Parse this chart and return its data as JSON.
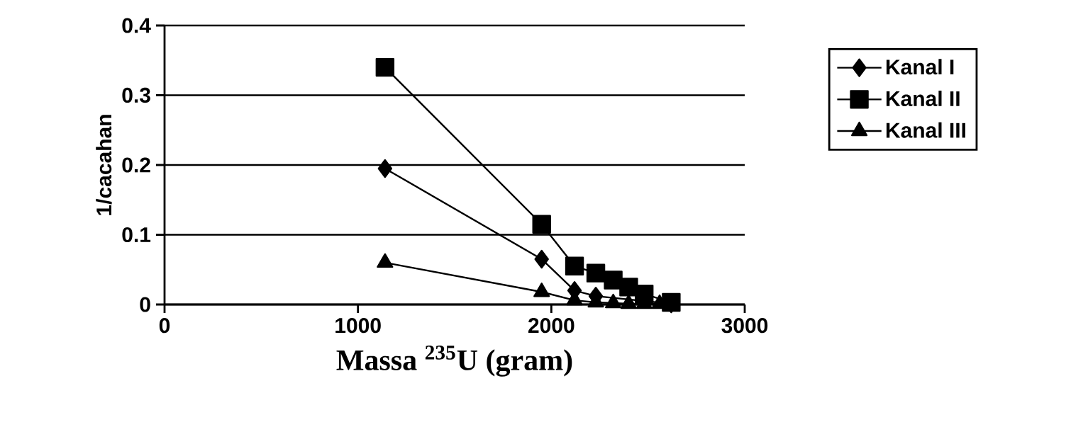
{
  "chart_data": {
    "type": "line",
    "xlabel": "Massa $^{235}$U (gram)",
    "ylabel": "1/cacahan",
    "x": [
      1140,
      1950,
      2120,
      2230,
      2320,
      2400,
      2480,
      2560,
      2620
    ],
    "series": [
      {
        "name": "Kanal I",
        "color": "#000000",
        "marker": "diamond",
        "values": [
          0.195,
          0.065,
          0.02,
          0.012,
          null,
          null,
          null,
          null,
          0.001
        ]
      },
      {
        "name": "Kanal II",
        "color": "#000000",
        "marker": "square",
        "values": [
          0.34,
          0.115,
          0.055,
          0.045,
          0.035,
          0.025,
          0.015,
          null,
          0.003
        ]
      },
      {
        "name": "Kanal III",
        "color": "#000000",
        "marker": "triangle",
        "values": [
          0.06,
          0.018,
          0.006,
          0.003,
          0.002,
          0.001,
          0.001,
          0.001,
          0
        ]
      }
    ],
    "xlim": [
      0,
      3000
    ],
    "xticks": [
      0,
      1000,
      2000,
      3000
    ],
    "ylim": [
      0,
      0.4
    ],
    "yticks": [
      0,
      0.1,
      0.2,
      0.3,
      0.4
    ],
    "grid": "y",
    "legend": "right",
    "line_style": "solid"
  }
}
